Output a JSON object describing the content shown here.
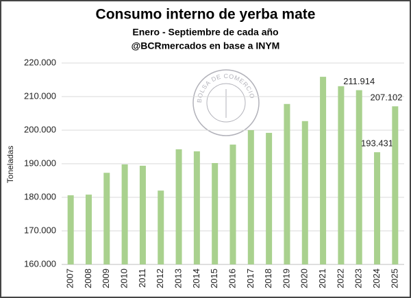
{
  "chart_data": {
    "type": "bar",
    "title": "Consumo interno de yerba mate",
    "subtitle": "Enero - Septiembre de cada año",
    "source": "@BCRmercados en base a INYM",
    "ylabel": "Toneladas",
    "watermark": "BOLSA DE COMERCIO DE ROSARIO",
    "categories": [
      "2007",
      "2008",
      "2009",
      "2010",
      "2011",
      "2012",
      "2013",
      "2014",
      "2015",
      "2016",
      "2017",
      "2018",
      "2019",
      "2020",
      "2021",
      "2022",
      "2023",
      "2024",
      "2025"
    ],
    "values": [
      180600,
      180800,
      187300,
      189800,
      189400,
      182000,
      194300,
      193700,
      190200,
      195700,
      200000,
      199200,
      207800,
      202700,
      215900,
      213100,
      211914,
      193431,
      207102
    ],
    "value_labels": [
      null,
      null,
      null,
      null,
      null,
      null,
      null,
      null,
      null,
      null,
      null,
      null,
      null,
      null,
      null,
      null,
      "211.914",
      "193.431",
      "207.102"
    ],
    "color": "#a9d18e",
    "ylim": [
      160000,
      220000
    ],
    "yticks": [
      {
        "value": 160000,
        "label": "160.000"
      },
      {
        "value": 170000,
        "label": "170.000"
      },
      {
        "value": 180000,
        "label": "180.000"
      },
      {
        "value": 190000,
        "label": "190.000"
      },
      {
        "value": 200000,
        "label": "200.000"
      },
      {
        "value": 210000,
        "label": "210.000"
      },
      {
        "value": 220000,
        "label": "220.000"
      }
    ],
    "grid": true
  }
}
